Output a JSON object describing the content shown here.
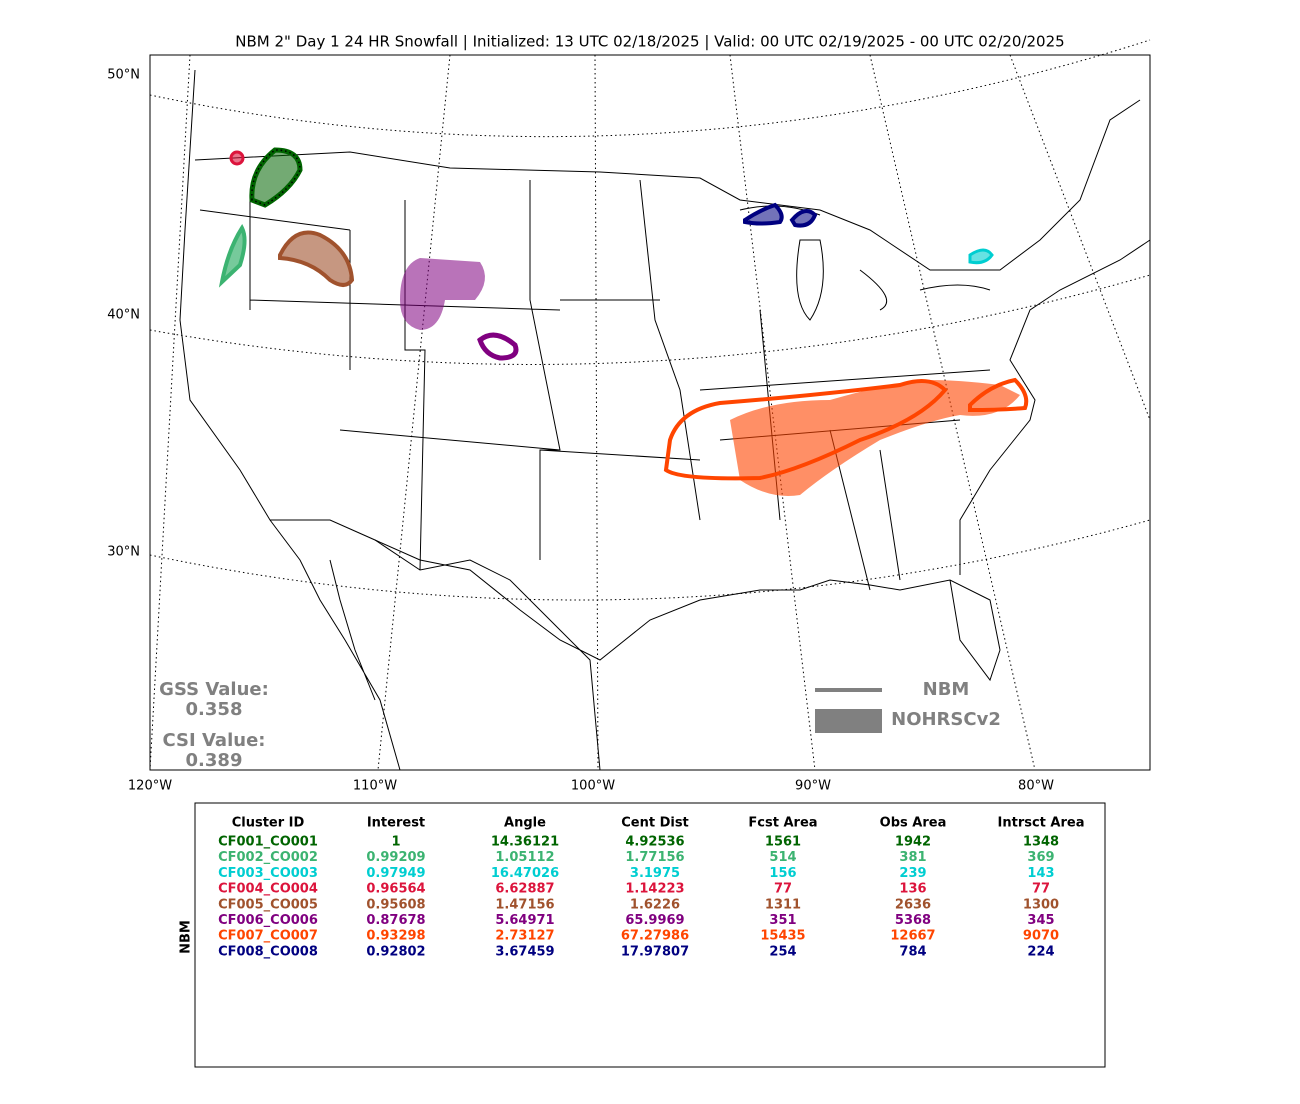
{
  "title": "NBM 2\" Day 1 24 HR Snowfall | Initialized: 13 UTC 02/18/2025 | Valid: 00 UTC 02/19/2025 - 00 UTC 02/20/2025",
  "map": {
    "lat_labels": [
      "50°N",
      "40°N",
      "30°N"
    ],
    "lon_labels": [
      "120°W",
      "110°W",
      "100°W",
      "90°W",
      "80°W"
    ],
    "scores": [
      {
        "label": "GSS Value:",
        "value": "0.358"
      },
      {
        "label": "CSI Value:",
        "value": "0.389"
      }
    ],
    "legend": {
      "line": "NBM",
      "fill": "NOHRSCv2"
    }
  },
  "table": {
    "side_label": "NBM",
    "columns": [
      "Cluster ID",
      "Interest",
      "Angle",
      "Cent Dist",
      "Fcst Area",
      "Obs Area",
      "Intrsct Area"
    ],
    "rows": [
      {
        "color": "#006400",
        "cells": [
          "CF001_CO001",
          "1",
          "14.36121",
          "4.92536",
          "1561",
          "1942",
          "1348"
        ]
      },
      {
        "color": "#3cb371",
        "cells": [
          "CF002_CO002",
          "0.99209",
          "1.05112",
          "1.77156",
          "514",
          "381",
          "369"
        ]
      },
      {
        "color": "#00ced1",
        "cells": [
          "CF003_CO003",
          "0.97949",
          "16.47026",
          "3.1975",
          "156",
          "239",
          "143"
        ]
      },
      {
        "color": "#dc143c",
        "cells": [
          "CF004_CO004",
          "0.96564",
          "6.62887",
          "1.14223",
          "77",
          "136",
          "77"
        ]
      },
      {
        "color": "#a0522d",
        "cells": [
          "CF005_CO005",
          "0.95608",
          "1.47156",
          "1.6226",
          "1311",
          "2636",
          "1300"
        ]
      },
      {
        "color": "#800080",
        "cells": [
          "CF006_CO006",
          "0.87678",
          "5.64971",
          "65.9969",
          "351",
          "5368",
          "345"
        ]
      },
      {
        "color": "#ff4500",
        "cells": [
          "CF007_CO007",
          "0.93298",
          "2.73127",
          "67.27986",
          "15435",
          "12667",
          "9070"
        ]
      },
      {
        "color": "#000080",
        "cells": [
          "CF008_CO008",
          "0.92802",
          "3.67459",
          "17.97807",
          "254",
          "784",
          "224"
        ]
      }
    ]
  }
}
